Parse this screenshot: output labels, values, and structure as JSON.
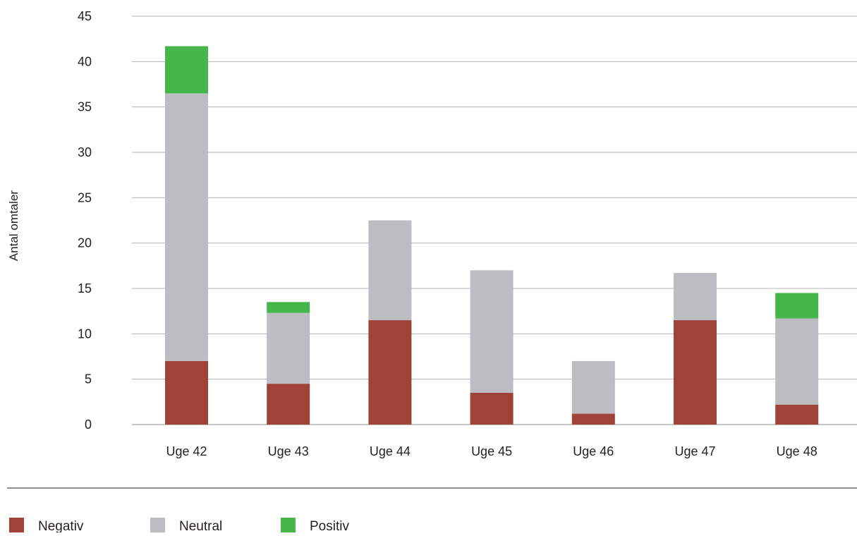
{
  "chart_data": {
    "type": "bar",
    "stacked": true,
    "title": "",
    "xlabel": "",
    "ylabel": "Antal omtaler",
    "ylim": [
      0,
      45
    ],
    "yticks": [
      0,
      5,
      10,
      15,
      20,
      25,
      30,
      35,
      40,
      45
    ],
    "grid": true,
    "legend_position": "bottom-left",
    "categories": [
      "Uge 42",
      "Uge 43",
      "Uge 44",
      "Uge 45",
      "Uge 46",
      "Uge 47",
      "Uge 48"
    ],
    "series": [
      {
        "name": "Negativ",
        "color": "#9f4237",
        "values": [
          7,
          4.5,
          11.5,
          3.5,
          1.2,
          11.5,
          2.2
        ]
      },
      {
        "name": "Neutral",
        "color": "#bcbdc0",
        "values": [
          29.5,
          7.8,
          11,
          13.5,
          5.8,
          5.2,
          9.5
        ]
      },
      {
        "name": "Positiv",
        "color": "#45b649",
        "values": [
          5.2,
          1.2,
          0,
          0,
          0,
          0,
          2.8
        ]
      }
    ]
  }
}
